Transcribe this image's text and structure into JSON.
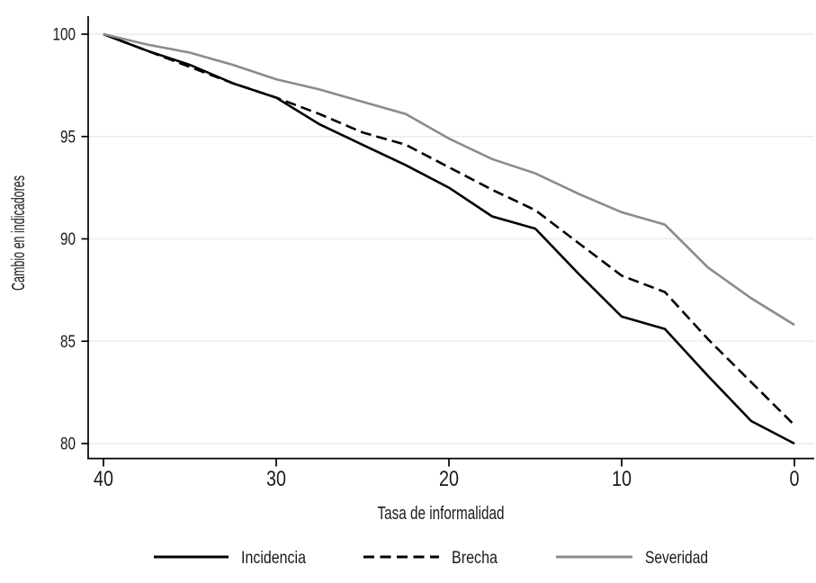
{
  "chart_data": {
    "type": "line",
    "title": "",
    "xlabel": "Tasa de informalidad",
    "ylabel": "Cambio en indicadores",
    "x": [
      40,
      37.5,
      35,
      32.5,
      30,
      27.5,
      25,
      22.5,
      20,
      17.5,
      15,
      12.5,
      10,
      7.5,
      5,
      2.5,
      0
    ],
    "series": [
      {
        "name": "Incidencia",
        "color": "#000000",
        "dash": "solid",
        "values": [
          100,
          99.2,
          98.5,
          97.6,
          96.9,
          95.6,
          94.6,
          93.6,
          92.5,
          91.1,
          90.5,
          88.3,
          86.2,
          85.6,
          83.3,
          81.1,
          80.0
        ]
      },
      {
        "name": "Brecha",
        "color": "#000000",
        "dash": "dashed",
        "values": [
          100,
          99.2,
          98.4,
          97.6,
          96.9,
          96.1,
          95.2,
          94.6,
          93.5,
          92.4,
          91.4,
          89.8,
          88.2,
          87.4,
          85.1,
          83.0,
          80.9
        ]
      },
      {
        "name": "Severidad",
        "color": "#8b8b8b",
        "dash": "solid",
        "values": [
          100,
          99.5,
          99.1,
          98.5,
          97.8,
          97.3,
          96.7,
          96.1,
          94.9,
          93.9,
          93.2,
          92.2,
          91.3,
          90.7,
          88.6,
          87.1,
          85.8
        ]
      }
    ],
    "x_ticks": [
      "40",
      "30",
      "20",
      "10",
      "0"
    ],
    "y_ticks": [
      "80",
      "85",
      "90",
      "95",
      "100"
    ],
    "xlim": [
      40,
      0
    ],
    "ylim": [
      80,
      100
    ],
    "x_axis_reversed": true,
    "grid": "horizontal",
    "legend_position": "bottom",
    "legend": [
      "Incidencia",
      "Brecha",
      "Severidad"
    ],
    "colors": {
      "text": "#1a1a1a",
      "axis": "#000000",
      "gridline": "#e4eef1",
      "black_series": "#000000",
      "gray_series": "#8b8b8b",
      "background": "#ffffff"
    }
  }
}
